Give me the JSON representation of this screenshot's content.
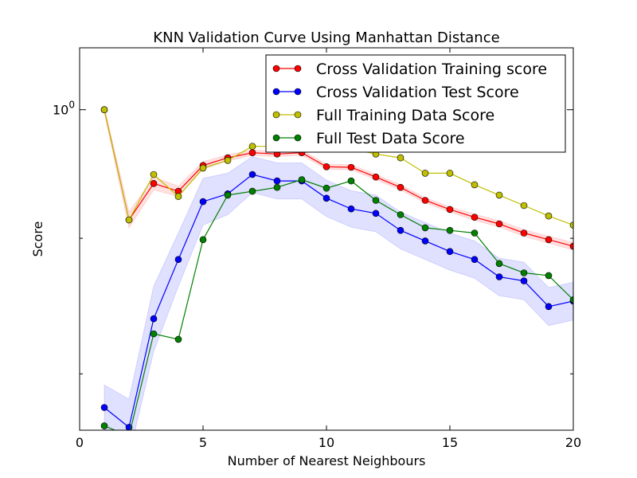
{
  "chart_data": {
    "type": "line",
    "title": "KNN Validation Curve Using Manhattan Distance",
    "xlabel": "Number of Nearest Neighbours",
    "ylabel": "Score",
    "xlim": [
      0,
      20
    ],
    "ylim": [
      0.88,
      1.025
    ],
    "yscale": "log",
    "xticks": [
      0,
      5,
      10,
      15,
      20
    ],
    "yticks": [
      {
        "value": 1.0,
        "base": "10",
        "exp": "0"
      }
    ],
    "legend_position": "upper-right",
    "grid": false,
    "x": [
      1,
      2,
      3,
      4,
      5,
      6,
      7,
      8,
      9,
      10,
      11,
      12,
      13,
      14,
      15,
      16,
      17,
      18,
      19,
      20
    ],
    "series": [
      {
        "name": "Cross Validation Training score",
        "color": "#ff0000",
        "band_color": "#ff0000",
        "values": [
          1.0,
          0.957,
          0.971,
          0.968,
          0.978,
          0.981,
          0.983,
          0.9825,
          0.983,
          0.9775,
          0.9773,
          0.9735,
          0.9695,
          0.9645,
          0.961,
          0.958,
          0.9555,
          0.952,
          0.9495,
          0.947
        ],
        "band": [
          0.001,
          0.003,
          0.0025,
          0.002,
          0.0015,
          0.0012,
          0.001,
          0.001,
          0.001,
          0.001,
          0.001,
          0.001,
          0.001,
          0.001,
          0.001,
          0.0012,
          0.0012,
          0.0013,
          0.0013,
          0.0014
        ]
      },
      {
        "name": "Cross Validation Test Score",
        "color": "#0000ff",
        "band_color": "#0000ff",
        "values": [
          0.888,
          0.881,
          0.92,
          0.942,
          0.964,
          0.967,
          0.9745,
          0.972,
          0.972,
          0.9653,
          0.9612,
          0.9595,
          0.953,
          0.949,
          0.945,
          0.942,
          0.9355,
          0.934,
          0.9245,
          0.9265
        ],
        "band": [
          0.008,
          0.01,
          0.012,
          0.01,
          0.009,
          0.008,
          0.007,
          0.007,
          0.007,
          0.007,
          0.007,
          0.007,
          0.007,
          0.007,
          0.007,
          0.007,
          0.007,
          0.007,
          0.007,
          0.007
        ]
      },
      {
        "name": "Full Training Data Score",
        "color": "#bfbf00",
        "values": [
          1.0,
          0.957,
          0.9745,
          0.966,
          0.977,
          0.98,
          0.9855,
          0.9855,
          0.9865,
          0.985,
          0.9845,
          0.9825,
          0.981,
          0.975,
          0.975,
          0.9705,
          0.9665,
          0.9625,
          0.9585,
          0.955
        ]
      },
      {
        "name": "Full Test Data Score",
        "color": "#008000",
        "values": [
          0.8815,
          0.878,
          0.9145,
          0.9125,
          0.9495,
          0.9665,
          0.968,
          0.9695,
          0.9725,
          0.9692,
          0.972,
          0.9645,
          0.959,
          0.954,
          0.953,
          0.952,
          0.9405,
          0.937,
          0.936,
          0.927
        ]
      }
    ]
  }
}
